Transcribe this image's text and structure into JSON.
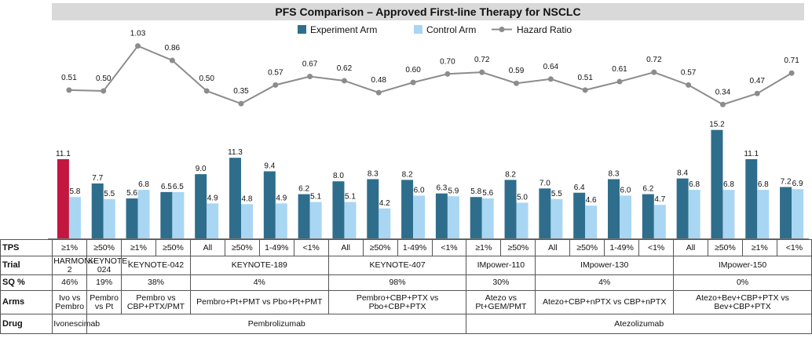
{
  "colors": {
    "experiment": "#2E6E8C",
    "control": "#A9D6F2",
    "highlight": "#C2173F",
    "hazard_line": "#8C8C8C",
    "title_band": "#D9D9D9"
  },
  "chart_data": {
    "type": "bar",
    "title": "PFS Comparison – Approved First-line  Therapy for NSCLC",
    "legend_position": "top-center",
    "legend": [
      "Experiment Arm",
      "Control Arm",
      "Hazard Ratio"
    ],
    "categories": [
      "≥1%",
      "≥50%",
      "≥1%",
      "≥50%",
      "All",
      "≥50%",
      "1-49%",
      "<1%",
      "All",
      "≥50%",
      "1-49%",
      "<1%",
      "≥1%",
      "≥50%",
      "All",
      "≥50%",
      "1-49%",
      "<1%",
      "All",
      "≥50%",
      "≥1%",
      "<1%"
    ],
    "series": [
      {
        "name": "Experiment Arm",
        "kind": "bar",
        "values": [
          11.1,
          7.7,
          5.6,
          6.5,
          9.0,
          11.3,
          9.4,
          6.2,
          8.0,
          8.3,
          8.2,
          6.3,
          5.8,
          8.2,
          7.0,
          6.4,
          8.3,
          6.2,
          8.4,
          15.2,
          11.1,
          7.2
        ],
        "labels": [
          "11.1",
          "7.7",
          "5.6",
          "6.5",
          "9.0",
          "11.3",
          "9.4",
          "6.2",
          "8.0",
          "8.3",
          "8.2",
          "6.3",
          "5.8",
          "8.2",
          "7.0",
          "6.4",
          "8.3",
          "6.2",
          "8.4",
          "15.2",
          "11.1",
          "7.2"
        ]
      },
      {
        "name": "Control Arm",
        "kind": "bar",
        "values": [
          5.8,
          5.5,
          6.8,
          6.5,
          4.9,
          4.8,
          4.9,
          5.1,
          5.1,
          4.2,
          6.0,
          5.9,
          5.6,
          5.0,
          5.5,
          4.6,
          6.0,
          4.7,
          6.8,
          6.8,
          6.8,
          6.9
        ],
        "labels": [
          "5.8",
          "5.5",
          "6.8",
          "6.5",
          "4.9",
          "4.8",
          "4.9",
          "5.1",
          "5.1",
          "4.2",
          "6.0",
          "5.9",
          "5.6",
          "5.0",
          "5.5",
          "4.6",
          "6.0",
          "4.7",
          "6.8",
          "6.8",
          "6.8",
          "6.9"
        ]
      },
      {
        "name": "Hazard Ratio",
        "kind": "line",
        "values": [
          0.51,
          0.5,
          1.03,
          0.86,
          0.5,
          0.35,
          0.57,
          0.67,
          0.62,
          0.48,
          0.6,
          0.7,
          0.72,
          0.59,
          0.64,
          0.51,
          0.61,
          0.72,
          0.57,
          0.34,
          0.47,
          0.71
        ],
        "labels": [
          "0.51",
          "0.50",
          "1.03",
          "0.86",
          "0.50",
          "0.35",
          "0.57",
          "0.67",
          "0.62",
          "0.48",
          "0.60",
          "0.70",
          "0.72",
          "0.59",
          "0.64",
          "0.51",
          "0.61",
          "0.72",
          "0.57",
          "0.34",
          "0.47",
          "0.71"
        ]
      }
    ],
    "highlight_index": 0,
    "pfs_range": [
      0,
      16
    ],
    "hr_range": [
      0.25,
      1.1
    ],
    "grid": false
  },
  "table": {
    "row_labels": {
      "tps": "TPS",
      "trial": "Trial",
      "sq": "SQ %",
      "arms": "Arms",
      "drug": "Drug"
    },
    "tps": [
      "≥1%",
      "≥50%",
      "≥1%",
      "≥50%",
      "All",
      "≥50%",
      "1-49%",
      "<1%",
      "All",
      "≥50%",
      "1-49%",
      "<1%",
      "≥1%",
      "≥50%",
      "All",
      "≥50%",
      "1-49%",
      "<1%",
      "All",
      "≥50%",
      "≥1%",
      "<1%"
    ],
    "trial": [
      {
        "text": "HARMONi-2",
        "span": 1
      },
      {
        "text": "KEYNOTE-024",
        "span": 1
      },
      {
        "text": "KEYNOTE-042",
        "span": 2
      },
      {
        "text": "KEYNOTE-189",
        "span": 4
      },
      {
        "text": "KEYNOTE-407",
        "span": 4
      },
      {
        "text": "IMpower-110",
        "span": 2
      },
      {
        "text": "IMpower-130",
        "span": 4
      },
      {
        "text": "IMpower-150",
        "span": 4
      }
    ],
    "sq": [
      {
        "text": "46%",
        "span": 1
      },
      {
        "text": "19%",
        "span": 1
      },
      {
        "text": "38%",
        "span": 2
      },
      {
        "text": "4%",
        "span": 4
      },
      {
        "text": "98%",
        "span": 4
      },
      {
        "text": "30%",
        "span": 2
      },
      {
        "text": "4%",
        "span": 4
      },
      {
        "text": "0%",
        "span": 4
      }
    ],
    "arms": [
      {
        "text": "Ivo vs Pembro",
        "span": 1
      },
      {
        "text": "Pembro vs Pt",
        "span": 1
      },
      {
        "text": "Pembro vs CBP+PTX/PMT",
        "span": 2
      },
      {
        "text": "Pembro+Pt+PMT   vs Pbo+Pt+PMT",
        "span": 4
      },
      {
        "text": "Pembro+CBP+PTX   vs Pbo+CBP+PTX",
        "span": 4
      },
      {
        "text": "Atezo vs Pt+GEM/PMT",
        "span": 2
      },
      {
        "text": "Atezo+CBP+nPTX   vs CBP+nPTX",
        "span": 4
      },
      {
        "text": "Atezo+Bev+CBP+PTX  vs Bev+CBP+PTX",
        "span": 4
      }
    ],
    "drug": [
      {
        "text": "Ivonescimab",
        "span": 1
      },
      {
        "text": "Pembrolizumab",
        "span": 11
      },
      {
        "text": "Atezolizumab",
        "span": 10
      }
    ]
  }
}
